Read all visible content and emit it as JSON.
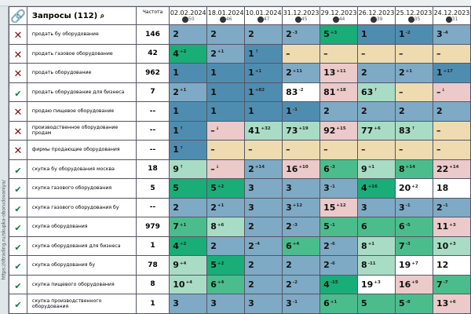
{
  "url_label": "https://dtrading.ru/skupka-oborudovaniya/",
  "header": {
    "queries_title": "Запросы (112)",
    "freq_title": "Частота",
    "dates": [
      {
        "date": "02.02.2024",
        "badge": "50"
      },
      {
        "date": "18.01.2024",
        "badge": "46"
      },
      {
        "date": "10.01.2024",
        "badge": "47"
      },
      {
        "date": "31.12.2023",
        "badge": "45"
      },
      {
        "date": "29.12.2023",
        "badge": "44"
      },
      {
        "date": "26.12.2023",
        "badge": "39"
      },
      {
        "date": "25.12.2023",
        "badge": "35"
      },
      {
        "date": "24.12.2023",
        "badge": "31"
      }
    ]
  },
  "colors": {
    "db": "#4f8db0",
    "lb": "#7eaac5",
    "g1": "#19ad78",
    "g2": "#4bbd8c",
    "g3": "#a9dcc5",
    "pk": "#eccaca",
    "bg": "#eedcb0",
    "wh": "#ffffff"
  },
  "rows": [
    {
      "status": "x",
      "query": "продать бу оборудование",
      "freq": "146",
      "cells": [
        [
          "2",
          "",
          "lb"
        ],
        [
          "2",
          "",
          "lb"
        ],
        [
          "2",
          "",
          "lb"
        ],
        [
          "2",
          "-3",
          "lb"
        ],
        [
          "5",
          "+3",
          "g1"
        ],
        [
          "1",
          "",
          "db"
        ],
        [
          "1",
          "-2",
          "db"
        ],
        [
          "3",
          "-4",
          "lb"
        ]
      ]
    },
    {
      "status": "x",
      "query": "продать газовое оборудование",
      "freq": "42",
      "cells": [
        [
          "4",
          "+2",
          "g1"
        ],
        [
          "2",
          "+1",
          "lb"
        ],
        [
          "1",
          "↑",
          "db"
        ],
        [
          "–",
          "",
          "bg"
        ],
        [
          "–",
          "",
          "bg"
        ],
        [
          "–",
          "",
          "bg"
        ],
        [
          "–",
          "",
          "bg"
        ],
        [
          "–",
          "",
          "bg"
        ]
      ]
    },
    {
      "status": "x",
      "query": "продать оборудование",
      "freq": "962",
      "cells": [
        [
          "1",
          "",
          "db"
        ],
        [
          "1",
          "",
          "db"
        ],
        [
          "1",
          "+1",
          "db"
        ],
        [
          "2",
          "+11",
          "lb"
        ],
        [
          "13",
          "+11",
          "pk"
        ],
        [
          "2",
          "",
          "lb"
        ],
        [
          "2",
          "+1",
          "lb"
        ],
        [
          "1",
          "+17",
          "db"
        ]
      ]
    },
    {
      "status": "ok",
      "query": "продать оборудование для бизнеса",
      "freq": "7",
      "cells": [
        [
          "2",
          "+1",
          "lb"
        ],
        [
          "1",
          "",
          "db"
        ],
        [
          "1",
          "+82",
          "db"
        ],
        [
          "83",
          "-2",
          "wh"
        ],
        [
          "81",
          "+18",
          "pk"
        ],
        [
          "63",
          "↑",
          "g3"
        ],
        [
          "–",
          "",
          "bg"
        ],
        [
          "–",
          "↓",
          "pk"
        ]
      ]
    },
    {
      "status": "x",
      "query": "продаю пищевое оборудование",
      "freq": "--",
      "cells": [
        [
          "1",
          "",
          "db"
        ],
        [
          "1",
          "",
          "db"
        ],
        [
          "1",
          "",
          "db"
        ],
        [
          "1",
          "-1",
          "db"
        ],
        [
          "2",
          "",
          "lb"
        ],
        [
          "2",
          "",
          "lb"
        ],
        [
          "2",
          "",
          "lb"
        ],
        [
          "2",
          "",
          "lb"
        ]
      ]
    },
    {
      "status": "x",
      "query": "производственное оборудование продам",
      "freq": "--",
      "cells": [
        [
          "1",
          "↑",
          "db"
        ],
        [
          "–",
          "↓",
          "pk"
        ],
        [
          "41",
          "+32",
          "g3"
        ],
        [
          "73",
          "+19",
          "g3"
        ],
        [
          "92",
          "+15",
          "pk"
        ],
        [
          "77",
          "+6",
          "g3"
        ],
        [
          "83",
          "↑",
          "g3"
        ],
        [
          "–",
          "",
          "bg"
        ]
      ]
    },
    {
      "status": "x",
      "query": "фирмы продающие оборудования",
      "freq": "--",
      "cells": [
        [
          "1",
          "↑",
          "db"
        ],
        [
          "–",
          "",
          "bg"
        ],
        [
          "–",
          "",
          "bg"
        ],
        [
          "–",
          "",
          "bg"
        ],
        [
          "–",
          "",
          "bg"
        ],
        [
          "–",
          "",
          "bg"
        ],
        [
          "–",
          "",
          "bg"
        ],
        [
          "–",
          "",
          "bg"
        ]
      ]
    },
    {
      "status": "ok",
      "query": "скупка бу оборудования москва",
      "freq": "18",
      "cells": [
        [
          "9",
          "↑",
          "g3"
        ],
        [
          "–",
          "↓",
          "pk"
        ],
        [
          "2",
          "+14",
          "lb"
        ],
        [
          "16",
          "+10",
          "pk"
        ],
        [
          "6",
          "-3",
          "g2"
        ],
        [
          "9",
          "+1",
          "g3"
        ],
        [
          "8",
          "+14",
          "g2"
        ],
        [
          "22",
          "+14",
          "pk"
        ]
      ]
    },
    {
      "status": "ok",
      "query": "скупка газового оборудования",
      "freq": "5",
      "cells": [
        [
          "5",
          "",
          "g1"
        ],
        [
          "5",
          "+2",
          "g1"
        ],
        [
          "3",
          "",
          "lb"
        ],
        [
          "3",
          "",
          "lb"
        ],
        [
          "3",
          "-1",
          "lb"
        ],
        [
          "4",
          "+16",
          "g1"
        ],
        [
          "20",
          "+2",
          "wh"
        ],
        [
          "18",
          "",
          "wh"
        ]
      ]
    },
    {
      "status": "ok",
      "query": "скупка газового оборудования бу",
      "freq": "--",
      "cells": [
        [
          "2",
          "",
          "lb"
        ],
        [
          "2",
          "+1",
          "lb"
        ],
        [
          "3",
          "",
          "lb"
        ],
        [
          "3",
          "+12",
          "lb"
        ],
        [
          "15",
          "+12",
          "pk"
        ],
        [
          "3",
          "",
          "lb"
        ],
        [
          "3",
          "-1",
          "lb"
        ],
        [
          "2",
          "-1",
          "lb"
        ]
      ]
    },
    {
      "status": "ok",
      "query": "скупка оборудования",
      "freq": "979",
      "cells": [
        [
          "7",
          "+1",
          "g2"
        ],
        [
          "8",
          "+6",
          "g3"
        ],
        [
          "2",
          "",
          "lb"
        ],
        [
          "2",
          "-3",
          "lb"
        ],
        [
          "5",
          "-1",
          "g2"
        ],
        [
          "6",
          "",
          "g2"
        ],
        [
          "6",
          "-5",
          "g2"
        ],
        [
          "11",
          "+3",
          "pk"
        ]
      ]
    },
    {
      "status": "ok",
      "query": "скупка оборудования для бизнеса",
      "freq": "1",
      "cells": [
        [
          "4",
          "+2",
          "g1"
        ],
        [
          "2",
          "",
          "lb"
        ],
        [
          "2",
          "-4",
          "lb"
        ],
        [
          "6",
          "+4",
          "g2"
        ],
        [
          "2",
          "-6",
          "lb"
        ],
        [
          "8",
          "+1",
          "g3"
        ],
        [
          "7",
          "-3",
          "g2"
        ],
        [
          "10",
          "+3",
          "g3"
        ]
      ]
    },
    {
      "status": "ok",
      "query": "скупка оборудования бу",
      "freq": "78",
      "cells": [
        [
          "9",
          "+4",
          "g3"
        ],
        [
          "5",
          "+2",
          "g1"
        ],
        [
          "2",
          "",
          "lb"
        ],
        [
          "2",
          "",
          "lb"
        ],
        [
          "2",
          "-6",
          "lb"
        ],
        [
          "8",
          "-11",
          "g3"
        ],
        [
          "19",
          "+7",
          "wh"
        ],
        [
          "12",
          "",
          "wh"
        ]
      ]
    },
    {
      "status": "ok",
      "query": "скупка пищевого оборудования",
      "freq": "8",
      "cells": [
        [
          "10",
          "+4",
          "g3"
        ],
        [
          "6",
          "+4",
          "g2"
        ],
        [
          "2",
          "",
          "lb"
        ],
        [
          "2",
          "-2",
          "lb"
        ],
        [
          "4",
          "-15",
          "g1"
        ],
        [
          "19",
          "+3",
          "wh"
        ],
        [
          "16",
          "+9",
          "pk"
        ],
        [
          "7",
          "-7",
          "g2"
        ]
      ]
    },
    {
      "status": "ok",
      "query": "скупка производственного оборудования",
      "freq": "1",
      "cells": [
        [
          "3",
          "",
          "lb"
        ],
        [
          "3",
          "",
          "lb"
        ],
        [
          "3",
          "",
          "lb"
        ],
        [
          "3",
          "-1",
          "lb"
        ],
        [
          "6",
          "+1",
          "g2"
        ],
        [
          "5",
          "",
          "g2"
        ],
        [
          "5",
          "-8",
          "g2"
        ],
        [
          "13",
          "+6",
          "pk"
        ]
      ]
    }
  ]
}
